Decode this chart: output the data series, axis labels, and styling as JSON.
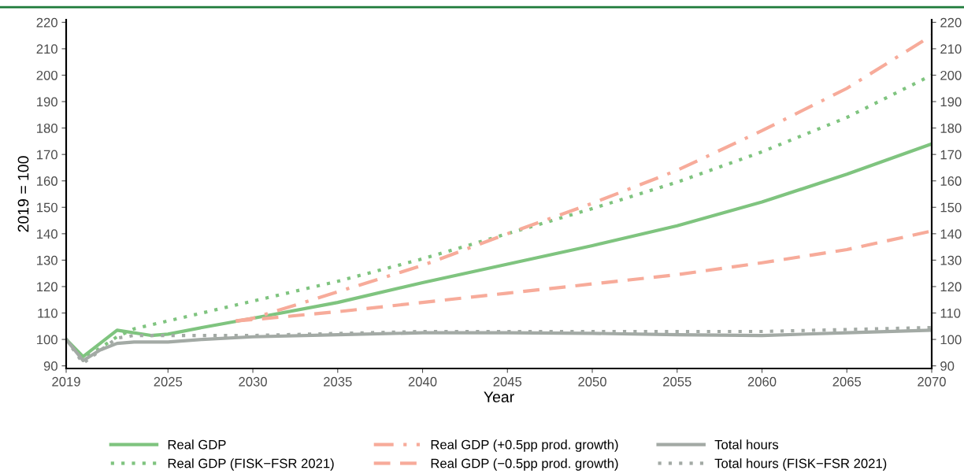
{
  "chart_data": {
    "type": "line",
    "xlabel": "Year",
    "ylabel": "2019 = 100",
    "xlim": [
      2019,
      2070
    ],
    "xticks": [
      2019,
      2025,
      2030,
      2035,
      2040,
      2045,
      2050,
      2055,
      2060,
      2065,
      2070
    ],
    "ylim": [
      89,
      221
    ],
    "yticks": [
      90,
      100,
      110,
      120,
      130,
      140,
      150,
      160,
      170,
      180,
      190,
      200,
      210,
      220
    ],
    "y2lim": [
      89,
      221
    ],
    "y2ticks": [
      90,
      100,
      110,
      120,
      130,
      140,
      150,
      160,
      170,
      180,
      190,
      200,
      210,
      220
    ],
    "grid": false,
    "legend": "bottom",
    "series": [
      {
        "name": "Real GDP",
        "color": "#7fc47f",
        "line_style": "solid",
        "x": [
          2019,
          2020,
          2022,
          2024,
          2025,
          2027,
          2030,
          2035,
          2040,
          2045,
          2050,
          2055,
          2060,
          2065,
          2070
        ],
        "values": [
          100,
          93.5,
          103.5,
          101.5,
          102,
          104.5,
          108,
          114,
          121.5,
          128.5,
          135.5,
          143,
          152,
          162.5,
          174
        ]
      },
      {
        "name": "Real GDP (FISK−FSR 2021)",
        "color": "#7fc47f",
        "line_style": "dotted",
        "x": [
          2019,
          2020,
          2022,
          2023,
          2025,
          2030,
          2035,
          2040,
          2045,
          2050,
          2055,
          2060,
          2065,
          2070
        ],
        "values": [
          100,
          92.5,
          101,
          104,
          107,
          114.5,
          122,
          130.5,
          140,
          149.5,
          159.5,
          171,
          184,
          200
        ]
      },
      {
        "name": "Real GDP (+0.5pp prod. growth)",
        "color": "#f7ab9a",
        "line_style": "dashdot",
        "x": [
          2029,
          2030,
          2035,
          2040,
          2045,
          2050,
          2055,
          2060,
          2065,
          2070
        ],
        "values": [
          107,
          108,
          118,
          128,
          140,
          151.5,
          164,
          179,
          195,
          215
        ]
      },
      {
        "name": "Real GDP (−0.5pp prod. growth)",
        "color": "#f7ab9a",
        "line_style": "dashed",
        "x": [
          2029,
          2030,
          2035,
          2040,
          2045,
          2050,
          2055,
          2060,
          2065,
          2070
        ],
        "values": [
          107,
          107.5,
          110.5,
          114,
          117.5,
          121,
          124.5,
          129,
          134,
          141
        ]
      },
      {
        "name": "Total hours",
        "color": "#a3aaa5",
        "line_style": "solid",
        "x": [
          2019,
          2020,
          2021,
          2022,
          2023,
          2025,
          2027,
          2030,
          2035,
          2040,
          2045,
          2050,
          2055,
          2060,
          2065,
          2070
        ],
        "values": [
          100,
          92,
          96,
          98.5,
          99,
          99,
          100,
          101,
          101.8,
          102.5,
          102.5,
          102.3,
          101.8,
          101.5,
          102.5,
          103.5
        ]
      },
      {
        "name": "Total hours (FISK−FSR 2021)",
        "color": "#a3aaa5",
        "line_style": "dotted",
        "x": [
          2019,
          2020,
          2022,
          2023,
          2025,
          2030,
          2040,
          2050,
          2060,
          2070
        ],
        "values": [
          100,
          91,
          100.5,
          101.5,
          101.5,
          101.5,
          103,
          103,
          103,
          104.5
        ]
      }
    ]
  }
}
